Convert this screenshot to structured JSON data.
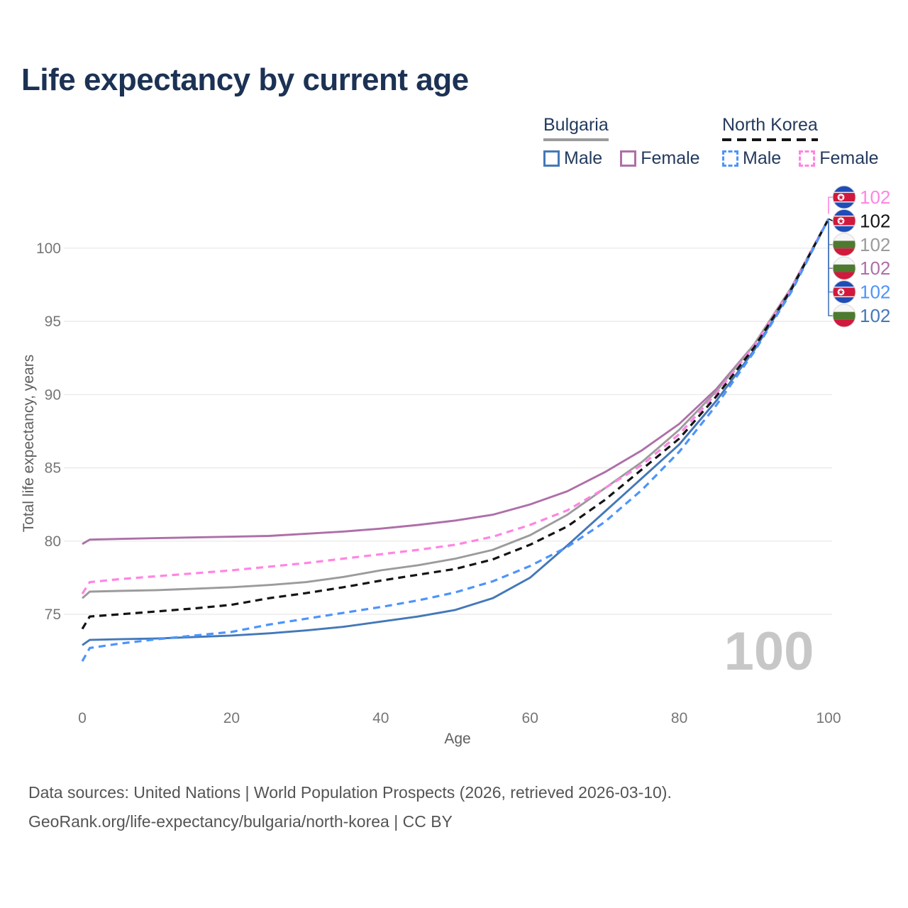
{
  "title": "Life expectancy by current age",
  "legend": {
    "groups": [
      {
        "label": "Bulgaria",
        "line_style": "solid",
        "sample_color": "#9b9b9b",
        "items": [
          {
            "label": "Male",
            "color": "#4478b8"
          },
          {
            "label": "Female",
            "color": "#ae6fa8"
          }
        ]
      },
      {
        "label": "North Korea",
        "line_style": "dashed",
        "sample_color": "#141414",
        "items": [
          {
            "label": "Male",
            "color": "#4d94fb"
          },
          {
            "label": "Female",
            "color": "#ff85e2"
          }
        ]
      }
    ]
  },
  "watermark": "100",
  "chart_data": {
    "type": "line",
    "title": "Life expectancy by current age",
    "xlabel": "Age",
    "ylabel": "Total life expectancy, years",
    "xlim": [
      0,
      100
    ],
    "ylim": [
      71,
      103.5
    ],
    "x_ticks": [
      0,
      20,
      40,
      60,
      80,
      100
    ],
    "y_ticks": [
      75,
      80,
      85,
      90,
      95,
      100
    ],
    "grid": true,
    "legend_position": "top-right",
    "x": [
      0,
      1,
      5,
      10,
      15,
      20,
      25,
      30,
      35,
      40,
      45,
      50,
      55,
      60,
      65,
      70,
      75,
      80,
      85,
      90,
      95,
      100
    ],
    "series": [
      {
        "name": "Bulgaria Female",
        "country": "Bulgaria",
        "sex": "Female",
        "color": "#ae6fa8",
        "dash": false,
        "values": [
          79.8,
          80.1,
          80.15,
          80.2,
          80.25,
          80.3,
          80.35,
          80.5,
          80.65,
          80.85,
          81.1,
          81.4,
          81.8,
          82.5,
          83.4,
          84.7,
          86.2,
          88.0,
          90.4,
          93.4,
          97.3,
          102
        ]
      },
      {
        "name": "Bulgaria Both Sexes",
        "country": "Bulgaria",
        "sex": "Both",
        "color": "#9b9b9b",
        "dash": false,
        "values": [
          76.1,
          76.55,
          76.6,
          76.65,
          76.75,
          76.85,
          77.0,
          77.2,
          77.55,
          78.0,
          78.35,
          78.8,
          79.4,
          80.4,
          81.8,
          83.6,
          85.4,
          87.6,
          90.25,
          93.4,
          97.3,
          102
        ]
      },
      {
        "name": "Bulgaria Male",
        "country": "Bulgaria",
        "sex": "Male",
        "color": "#4478b8",
        "dash": false,
        "values": [
          72.9,
          73.25,
          73.3,
          73.35,
          73.45,
          73.55,
          73.7,
          73.9,
          74.15,
          74.5,
          74.85,
          75.3,
          76.1,
          77.5,
          79.7,
          82.0,
          84.3,
          86.6,
          89.6,
          93.0,
          97.1,
          102
        ]
      },
      {
        "name": "North Korea Female",
        "country": "North Korea",
        "sex": "Female",
        "color": "#ff85e2",
        "dash": true,
        "values": [
          76.4,
          77.2,
          77.4,
          77.6,
          77.8,
          78.0,
          78.25,
          78.5,
          78.8,
          79.1,
          79.4,
          79.75,
          80.3,
          81.1,
          82.1,
          83.6,
          85.2,
          87.3,
          90.1,
          93.3,
          97.25,
          102
        ]
      },
      {
        "name": "North Korea Both Sexes",
        "country": "North Korea",
        "sex": "Both",
        "color": "#141414",
        "dash": true,
        "values": [
          74.0,
          74.85,
          75.0,
          75.2,
          75.4,
          75.65,
          76.1,
          76.45,
          76.85,
          77.3,
          77.7,
          78.1,
          78.75,
          79.75,
          81.0,
          82.8,
          84.9,
          87.0,
          89.9,
          93.2,
          97.2,
          102
        ]
      },
      {
        "name": "North Korea Male",
        "country": "North Korea",
        "sex": "Male",
        "color": "#4d94fb",
        "dash": true,
        "values": [
          71.8,
          72.7,
          73.0,
          73.3,
          73.55,
          73.8,
          74.3,
          74.7,
          75.1,
          75.5,
          75.95,
          76.5,
          77.25,
          78.3,
          79.6,
          81.3,
          83.5,
          86.1,
          89.3,
          92.9,
          97.0,
          102
        ]
      }
    ]
  },
  "end_labels": [
    {
      "flag": "north-korea",
      "value": "102",
      "color": "#ff85e2",
      "series": "North Korea Female"
    },
    {
      "flag": "north-korea",
      "value": "102",
      "color": "#141414",
      "series": "North Korea Both Sexes"
    },
    {
      "flag": "bulgaria",
      "value": "102",
      "color": "#9b9b9b",
      "series": "Bulgaria Both Sexes"
    },
    {
      "flag": "bulgaria",
      "value": "102",
      "color": "#ae6fa8",
      "series": "Bulgaria Female"
    },
    {
      "flag": "north-korea",
      "value": "102",
      "color": "#4d94fb",
      "series": "North Korea Male"
    },
    {
      "flag": "bulgaria",
      "value": "102",
      "color": "#4478b8",
      "series": "Bulgaria Male"
    }
  ],
  "footer": {
    "line1": "Data sources: United Nations | World Population Prospects (2026, retrieved 2026-03-10).",
    "line2": "GeoRank.org/life-expectancy/bulgaria/north-korea | CC BY"
  }
}
